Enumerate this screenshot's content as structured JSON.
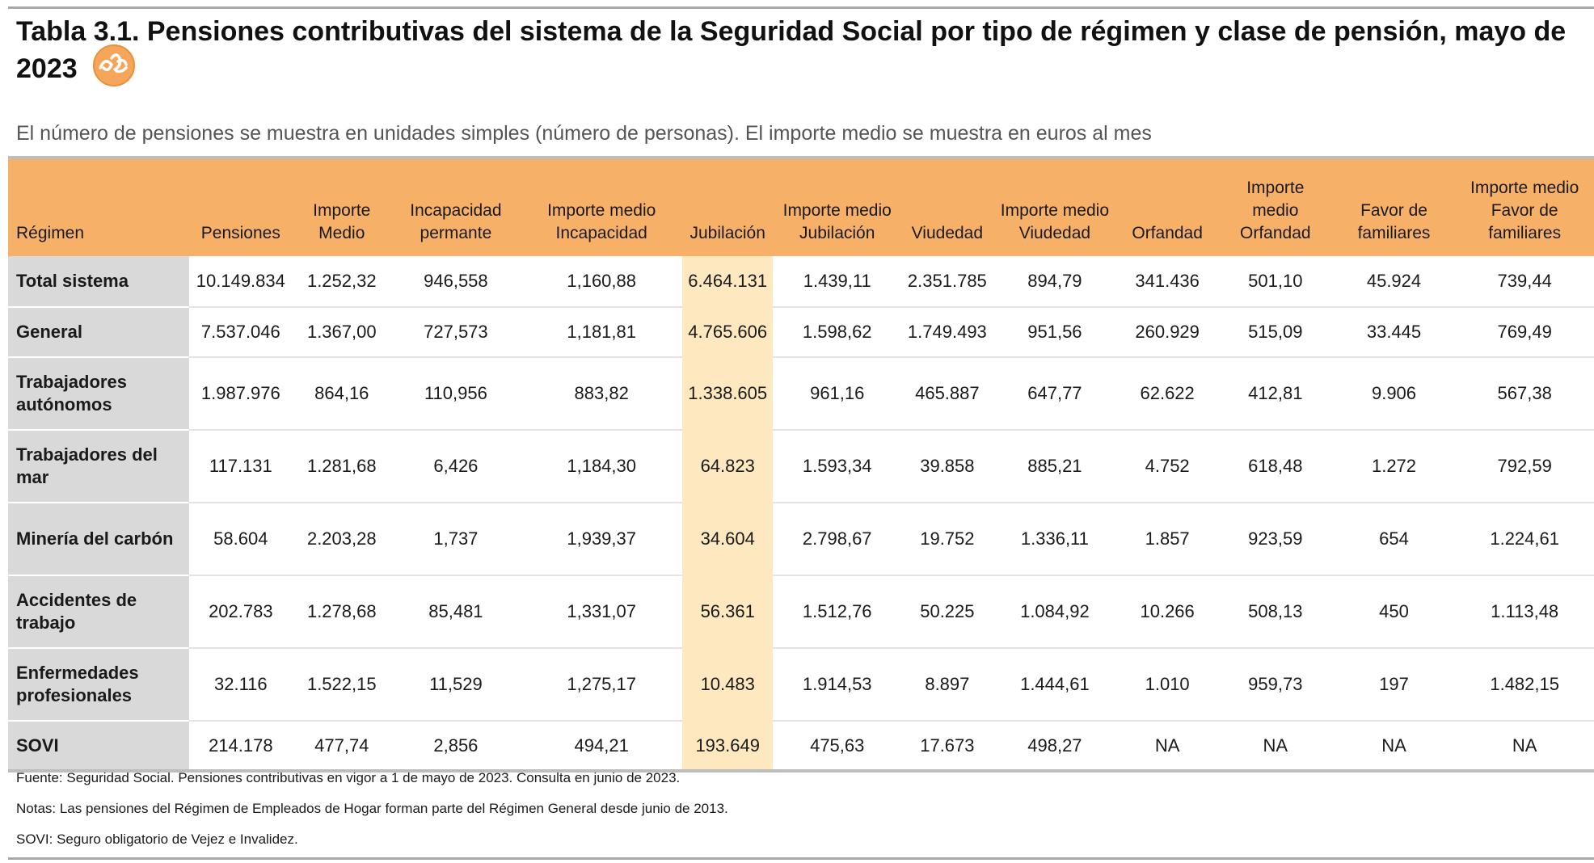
{
  "title": "Tabla 3.1. Pensiones contributivas del sistema de la Seguridad Social por tipo de régimen y clase de pensión, mayo de 2023",
  "logo_icon": "epi-logo-icon",
  "subtitle": "El número de pensiones se muestra en unidades simples (número de personas). El importe medio se muestra en euros al mes",
  "colors": {
    "header": "#f6b068",
    "highlight_column": "#fde8bf",
    "row_label": "#d9d9d9"
  },
  "headers": [
    "Régimen",
    "Pensiones",
    "Importe Medio",
    "Incapacidad permante",
    "Importe medio Incapacidad",
    "Jubilación",
    "Importe medio Jubilación",
    "Viudedad",
    "Importe medio Viudedad",
    "Orfandad",
    "Importe medio Orfandad",
    "Favor de familiares",
    "Importe medio Favor de familiares"
  ],
  "rows": [
    [
      "Total sistema",
      "10.149.834",
      "1.252,32",
      "946,558",
      "1,160,88",
      "6.464.131",
      "1.439,11",
      "2.351.785",
      "894,79",
      "341.436",
      "501,10",
      "45.924",
      "739,44"
    ],
    [
      "General",
      "7.537.046",
      "1.367,00",
      "727,573",
      "1,181,81",
      "4.765.606",
      "1.598,62",
      "1.749.493",
      "951,56",
      "260.929",
      "515,09",
      "33.445",
      "769,49"
    ],
    [
      "Trabajadores autónomos",
      "1.987.976",
      "864,16",
      "110,956",
      "883,82",
      "1.338.605",
      "961,16",
      "465.887",
      "647,77",
      "62.622",
      "412,81",
      "9.906",
      "567,38"
    ],
    [
      "Trabajadores del mar",
      "117.131",
      "1.281,68",
      "6,426",
      "1,184,30",
      "64.823",
      "1.593,34",
      "39.858",
      "885,21",
      "4.752",
      "618,48",
      "1.272",
      "792,59"
    ],
    [
      "Minería del carbón",
      "58.604",
      "2.203,28",
      "1,737",
      "1,939,37",
      "34.604",
      "2.798,67",
      "19.752",
      "1.336,11",
      "1.857",
      "923,59",
      "654",
      "1.224,61"
    ],
    [
      "Accidentes de trabajo",
      "202.783",
      "1.278,68",
      "85,481",
      "1,331,07",
      "56.361",
      "1.512,76",
      "50.225",
      "1.084,92",
      "10.266",
      "508,13",
      "450",
      "1.113,48"
    ],
    [
      "Enfermedades profesionales",
      "32.116",
      "1.522,15",
      "11,529",
      "1,275,17",
      "10.483",
      "1.914,53",
      "8.897",
      "1.444,61",
      "1.010",
      "959,73",
      "197",
      "1.482,15"
    ],
    [
      "SOVI",
      "214.178",
      "477,74",
      "2,856",
      "494,21",
      "193.649",
      "475,63",
      "17.673",
      "498,27",
      "NA",
      "NA",
      "NA",
      "NA"
    ]
  ],
  "notes": [
    "Fuente: Seguridad Social. Pensiones contributivas en vigor a 1 de mayo de 2023. Consulta en junio de 2023.",
    "Notas: Las pensiones del Régimen de Empleados de Hogar forman parte del Régimen General desde junio de 2013.",
    "SOVI: Seguro obligatorio de Vejez e Invalidez."
  ]
}
